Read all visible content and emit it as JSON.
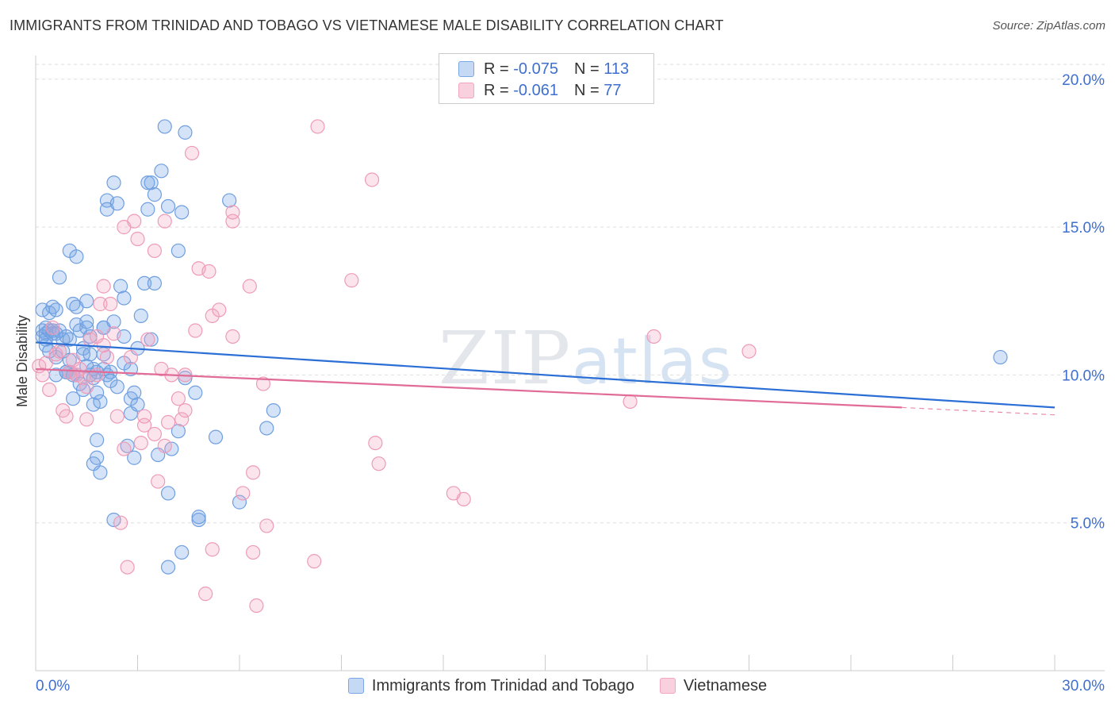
{
  "header": {
    "title": "IMMIGRANTS FROM TRINIDAD AND TOBAGO VS VIETNAMESE MALE DISABILITY CORRELATION CHART",
    "source": "Source: ZipAtlas.com"
  },
  "watermark": {
    "zip": "ZIP",
    "atlas": "atlas"
  },
  "legend": {
    "rows": [
      {
        "r_label": "R = ",
        "r_value": "-0.075",
        "n_label": "N = ",
        "n_value": "113"
      },
      {
        "r_label": "R = ",
        "r_value": "-0.061",
        "n_label": "N = ",
        "n_value": "77"
      }
    ]
  },
  "chart_data": {
    "type": "scatter",
    "title": "IMMIGRANTS FROM TRINIDAD AND TOBAGO VS VIETNAMESE MALE DISABILITY CORRELATION CHART",
    "xlabel": "",
    "ylabel": "Male Disability",
    "xlim": [
      0,
      30
    ],
    "ylim": [
      0,
      20.8
    ],
    "x_ticks": [
      "0.0%",
      "30.0%"
    ],
    "y_ticks": [
      {
        "value": 5,
        "label": "5.0%"
      },
      {
        "value": 10,
        "label": "10.0%"
      },
      {
        "value": 15,
        "label": "15.0%"
      },
      {
        "value": 20,
        "label": "20.0%"
      }
    ],
    "grid": "horizontal dashed",
    "legend_position": "top-center",
    "colors": {
      "blue": "#7aa7e6",
      "blue_line": "#2b6fd6",
      "pink": "#f2a6c0",
      "pink_line": "#e06c97"
    },
    "series": [
      {
        "name": "Immigrants from Trinidad and Tobago",
        "color": "#7aa7e6",
        "trend": {
          "x": [
            0,
            30
          ],
          "y": [
            11.1,
            8.9
          ]
        },
        "points": [
          [
            0.2,
            12.2
          ],
          [
            0.2,
            11.5
          ],
          [
            0.2,
            11.3
          ],
          [
            0.3,
            11.6
          ],
          [
            0.3,
            11.4
          ],
          [
            0.3,
            11.2
          ],
          [
            0.4,
            12.1
          ],
          [
            0.4,
            11.5
          ],
          [
            0.5,
            12.3
          ],
          [
            0.5,
            11.5
          ],
          [
            0.5,
            11.4
          ],
          [
            0.6,
            10.6
          ],
          [
            0.6,
            10.0
          ],
          [
            0.6,
            12.2
          ],
          [
            0.7,
            13.3
          ],
          [
            0.7,
            11.5
          ],
          [
            0.8,
            10.8
          ],
          [
            0.8,
            11.2
          ],
          [
            0.9,
            10.1
          ],
          [
            0.9,
            11.3
          ],
          [
            0.9,
            10.1
          ],
          [
            1.0,
            14.2
          ],
          [
            1.0,
            11.2
          ],
          [
            1.0,
            10.1
          ],
          [
            1.1,
            9.2
          ],
          [
            1.1,
            12.4
          ],
          [
            1.1,
            10.0
          ],
          [
            1.2,
            14.0
          ],
          [
            1.2,
            12.3
          ],
          [
            1.2,
            11.7
          ],
          [
            1.2,
            10.0
          ],
          [
            1.3,
            9.7
          ],
          [
            1.3,
            11.5
          ],
          [
            1.4,
            10.9
          ],
          [
            1.4,
            10.7
          ],
          [
            1.4,
            9.5
          ],
          [
            1.5,
            12.5
          ],
          [
            1.5,
            11.8
          ],
          [
            1.5,
            11.6
          ],
          [
            1.6,
            11.3
          ],
          [
            1.6,
            10.7
          ],
          [
            1.6,
            10.0
          ],
          [
            1.7,
            10.2
          ],
          [
            1.7,
            9.9
          ],
          [
            1.7,
            9.0
          ],
          [
            1.8,
            9.4
          ],
          [
            1.8,
            7.8
          ],
          [
            1.8,
            7.2
          ],
          [
            1.7,
            7.0
          ],
          [
            1.9,
            6.7
          ],
          [
            1.9,
            9.1
          ],
          [
            2.0,
            10.7
          ],
          [
            2.0,
            11.6
          ],
          [
            2.0,
            10.2
          ],
          [
            2.0,
            11.6
          ],
          [
            2.1,
            15.9
          ],
          [
            2.1,
            15.6
          ],
          [
            2.1,
            10.0
          ],
          [
            2.2,
            10.1
          ],
          [
            2.3,
            16.5
          ],
          [
            2.3,
            11.8
          ],
          [
            2.3,
            5.1
          ],
          [
            2.4,
            15.8
          ],
          [
            2.4,
            9.6
          ],
          [
            2.5,
            13.0
          ],
          [
            2.6,
            12.6
          ],
          [
            2.6,
            11.3
          ],
          [
            2.7,
            7.6
          ],
          [
            2.8,
            9.2
          ],
          [
            2.8,
            8.7
          ],
          [
            2.8,
            10.2
          ],
          [
            2.9,
            7.2
          ],
          [
            2.9,
            9.4
          ],
          [
            3.0,
            10.9
          ],
          [
            3.1,
            12.0
          ],
          [
            3.2,
            13.1
          ],
          [
            3.3,
            15.6
          ],
          [
            3.3,
            16.5
          ],
          [
            3.4,
            16.5
          ],
          [
            3.4,
            11.2
          ],
          [
            3.5,
            16.1
          ],
          [
            3.5,
            13.1
          ],
          [
            3.6,
            7.3
          ],
          [
            3.7,
            16.9
          ],
          [
            3.8,
            18.4
          ],
          [
            3.9,
            15.7
          ],
          [
            3.9,
            6.0
          ],
          [
            3.9,
            3.5
          ],
          [
            4.0,
            7.5
          ],
          [
            4.2,
            14.2
          ],
          [
            4.2,
            8.1
          ],
          [
            4.3,
            15.5
          ],
          [
            4.3,
            4.0
          ],
          [
            4.4,
            18.2
          ],
          [
            4.4,
            9.9
          ],
          [
            4.7,
            9.4
          ],
          [
            4.8,
            5.1
          ],
          [
            4.8,
            5.2
          ],
          [
            5.3,
            7.9
          ],
          [
            5.7,
            15.9
          ],
          [
            6.0,
            5.7
          ],
          [
            6.8,
            8.2
          ],
          [
            7.0,
            8.8
          ],
          [
            28.4,
            10.6
          ],
          [
            0.3,
            11.0
          ],
          [
            0.6,
            11.4
          ],
          [
            1.0,
            10.5
          ],
          [
            1.5,
            10.3
          ],
          [
            2.2,
            9.8
          ],
          [
            2.6,
            10.4
          ],
          [
            3.0,
            9.0
          ],
          [
            0.4,
            10.8
          ],
          [
            1.8,
            10.1
          ]
        ]
      },
      {
        "name": "Vietnamese",
        "color": "#f2a6c0",
        "trend": {
          "x": [
            0,
            25.5
          ],
          "y": [
            10.2,
            8.9
          ]
        },
        "trend_dashed": {
          "x": [
            25.5,
            30
          ],
          "y": [
            8.9,
            8.65
          ]
        },
        "points": [
          [
            0.1,
            10.3
          ],
          [
            0.2,
            10.0
          ],
          [
            0.3,
            10.4
          ],
          [
            0.4,
            9.5
          ],
          [
            0.5,
            11.6
          ],
          [
            0.6,
            10.7
          ],
          [
            0.7,
            10.8
          ],
          [
            0.8,
            8.8
          ],
          [
            0.9,
            8.6
          ],
          [
            1.0,
            10.1
          ],
          [
            1.1,
            10.5
          ],
          [
            1.2,
            10.0
          ],
          [
            1.3,
            10.2
          ],
          [
            1.4,
            9.9
          ],
          [
            1.5,
            9.6
          ],
          [
            1.5,
            8.5
          ],
          [
            1.6,
            11.2
          ],
          [
            1.8,
            10.0
          ],
          [
            1.8,
            11.3
          ],
          [
            1.9,
            12.4
          ],
          [
            2.0,
            13.0
          ],
          [
            2.0,
            11.0
          ],
          [
            2.1,
            10.6
          ],
          [
            2.2,
            12.4
          ],
          [
            2.3,
            11.4
          ],
          [
            2.4,
            8.6
          ],
          [
            2.5,
            5.0
          ],
          [
            2.6,
            7.5
          ],
          [
            2.6,
            15.0
          ],
          [
            2.7,
            3.5
          ],
          [
            2.8,
            10.6
          ],
          [
            2.9,
            15.2
          ],
          [
            3.0,
            14.6
          ],
          [
            3.1,
            7.7
          ],
          [
            3.2,
            8.3
          ],
          [
            3.2,
            8.6
          ],
          [
            3.3,
            11.2
          ],
          [
            3.5,
            14.2
          ],
          [
            3.5,
            8.0
          ],
          [
            3.6,
            6.4
          ],
          [
            3.7,
            10.2
          ],
          [
            3.8,
            15.2
          ],
          [
            3.8,
            7.6
          ],
          [
            3.9,
            8.4
          ],
          [
            4.0,
            10.0
          ],
          [
            4.2,
            9.2
          ],
          [
            4.3,
            8.5
          ],
          [
            4.4,
            10.0
          ],
          [
            4.4,
            8.8
          ],
          [
            4.6,
            17.5
          ],
          [
            4.7,
            11.5
          ],
          [
            4.8,
            13.6
          ],
          [
            5.0,
            2.6
          ],
          [
            5.1,
            13.5
          ],
          [
            5.2,
            12.0
          ],
          [
            5.2,
            4.1
          ],
          [
            5.4,
            12.2
          ],
          [
            5.8,
            15.2
          ],
          [
            5.8,
            15.5
          ],
          [
            5.8,
            11.3
          ],
          [
            6.1,
            6.0
          ],
          [
            6.3,
            13.0
          ],
          [
            6.4,
            6.7
          ],
          [
            6.4,
            4.0
          ],
          [
            6.5,
            2.2
          ],
          [
            6.7,
            9.7
          ],
          [
            6.8,
            4.9
          ],
          [
            8.2,
            3.7
          ],
          [
            8.3,
            18.4
          ],
          [
            9.3,
            13.2
          ],
          [
            9.9,
            16.6
          ],
          [
            10.0,
            7.7
          ],
          [
            10.1,
            7.0
          ],
          [
            12.3,
            6.0
          ],
          [
            12.6,
            5.8
          ],
          [
            17.5,
            9.1
          ],
          [
            18.2,
            11.3
          ],
          [
            21.0,
            10.8
          ]
        ]
      }
    ]
  },
  "bottom_legend": {
    "items": [
      {
        "label": "Immigrants from Trinidad and Tobago"
      },
      {
        "label": "Vietnamese"
      }
    ]
  }
}
